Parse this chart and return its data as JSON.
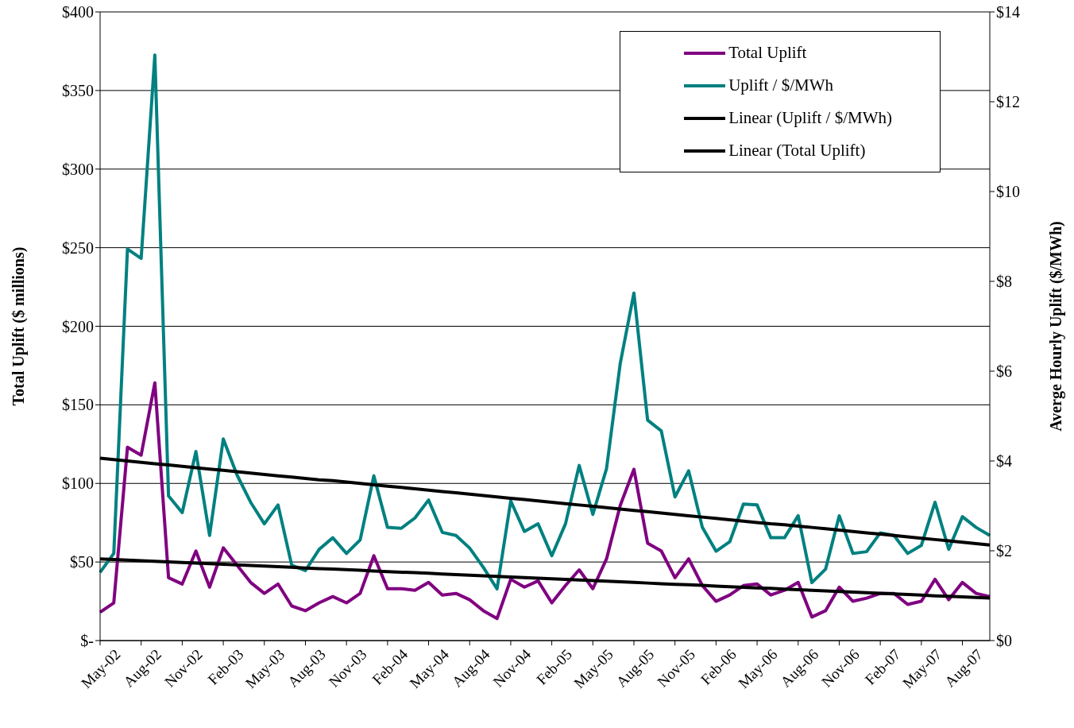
{
  "chart_data": {
    "type": "line",
    "ylabel": "Total Uplift ($ millions)",
    "y2label": "Averge Hourly Uplift ($/MWh)",
    "categories": [
      "May-02",
      null,
      null,
      "Aug-02",
      null,
      null,
      "Nov-02",
      null,
      null,
      "Feb-03",
      null,
      null,
      "May-03",
      null,
      null,
      "Aug-03",
      null,
      null,
      "Nov-03",
      null,
      null,
      "Feb-04",
      null,
      null,
      "May-04",
      null,
      null,
      "Aug-04",
      null,
      null,
      "Nov-04",
      null,
      null,
      "Feb-05",
      null,
      null,
      "May-05",
      null,
      null,
      "Aug-05",
      null,
      null,
      "Nov-05",
      null,
      null,
      "Feb-06",
      null,
      null,
      "May-06",
      null,
      null,
      "Aug-06",
      null,
      null,
      "Nov-06",
      null,
      null,
      "Feb-07",
      null,
      null,
      "May-07",
      null,
      null,
      "Aug-07",
      null,
      null
    ],
    "series": [
      {
        "name": "Total Uplift",
        "color": "#800080",
        "values": [
          18,
          24,
          123,
          118,
          164,
          40,
          36,
          57,
          34,
          59,
          48,
          37,
          30,
          36,
          22,
          19,
          24,
          28,
          24,
          30,
          54,
          33,
          33,
          32,
          37,
          29,
          30,
          26,
          19,
          14,
          39,
          34,
          38,
          24,
          35,
          45,
          33,
          52,
          86,
          109,
          62,
          57,
          40,
          52,
          35,
          25,
          29,
          35,
          36,
          29,
          32,
          37,
          15,
          19,
          34,
          25,
          27,
          30,
          30,
          23,
          25,
          39,
          26,
          37,
          30,
          28
        ]
      },
      {
        "name": "Uplift / $/MWh",
        "color": "#008080",
        "axis": "y2",
        "values": [
          1.52,
          1.94,
          8.72,
          8.51,
          13.04,
          3.22,
          2.85,
          4.21,
          2.34,
          4.49,
          3.69,
          3.08,
          2.6,
          3.02,
          1.68,
          1.56,
          2.03,
          2.29,
          1.94,
          2.24,
          3.67,
          2.52,
          2.5,
          2.73,
          3.13,
          2.41,
          2.34,
          2.06,
          1.63,
          1.15,
          3.11,
          2.43,
          2.6,
          1.89,
          2.6,
          3.9,
          2.81,
          3.83,
          6.17,
          7.74,
          4.91,
          4.67,
          3.2,
          3.78,
          2.52,
          1.99,
          2.2,
          3.04,
          3.02,
          2.29,
          2.29,
          2.78,
          1.29,
          1.59,
          2.78,
          1.94,
          1.98,
          2.4,
          2.34,
          1.94,
          2.12,
          3.08,
          2.03,
          2.76,
          2.52,
          2.34
        ]
      },
      {
        "name": "Linear (Uplift / $/MWh)",
        "color": "#000000",
        "axis": "y2",
        "values": [
          4.06,
          4.03,
          4.0,
          3.97,
          3.94,
          3.91,
          3.88,
          3.85,
          3.82,
          3.79,
          3.76,
          3.73,
          3.7,
          3.67,
          3.64,
          3.61,
          3.58,
          3.56,
          3.53,
          3.5,
          3.47,
          3.44,
          3.41,
          3.38,
          3.35,
          3.32,
          3.29,
          3.26,
          3.23,
          3.2,
          3.17,
          3.14,
          3.11,
          3.08,
          3.05,
          3.02,
          2.99,
          2.96,
          2.93,
          2.9,
          2.87,
          2.84,
          2.81,
          2.78,
          2.75,
          2.72,
          2.69,
          2.66,
          2.63,
          2.6,
          2.58,
          2.55,
          2.52,
          2.49,
          2.46,
          2.43,
          2.4,
          2.37,
          2.34,
          2.31,
          2.28,
          2.25,
          2.22,
          2.19,
          2.16,
          2.13
        ]
      },
      {
        "name": "Linear (Total Uplift)",
        "color": "#000000",
        "values": [
          52,
          51.6,
          51.2,
          50.8,
          50.5,
          50.1,
          49.7,
          49.3,
          48.9,
          48.5,
          48.2,
          47.8,
          47.4,
          47,
          46.6,
          46.2,
          45.8,
          45.5,
          45.1,
          44.7,
          44.3,
          43.9,
          43.5,
          43.2,
          42.8,
          42.4,
          42,
          41.6,
          41.2,
          40.8,
          40.5,
          40.1,
          39.7,
          39.3,
          38.9,
          38.5,
          38.2,
          37.8,
          37.4,
          37,
          36.6,
          36.2,
          35.8,
          35.5,
          35.1,
          34.7,
          34.3,
          33.9,
          33.5,
          33.2,
          32.8,
          32.4,
          32,
          31.6,
          31.2,
          30.8,
          30.5,
          30.1,
          29.7,
          29.3,
          28.9,
          28.5,
          28.2,
          27.8,
          27.4,
          27
        ]
      }
    ],
    "ylim": [
      0,
      400
    ],
    "yticks": [
      {
        "value": 0,
        "label": "$-"
      },
      {
        "value": 50,
        "label": "$50"
      },
      {
        "value": 100,
        "label": "$100"
      },
      {
        "value": 150,
        "label": "$150"
      },
      {
        "value": 200,
        "label": "$200"
      },
      {
        "value": 250,
        "label": "$250"
      },
      {
        "value": 300,
        "label": "$300"
      },
      {
        "value": 350,
        "label": "$350"
      },
      {
        "value": 400,
        "label": "$400"
      }
    ],
    "y2lim": [
      0,
      14
    ],
    "y2ticks": [
      {
        "value": 0,
        "label": "$0"
      },
      {
        "value": 2,
        "label": "$2"
      },
      {
        "value": 4,
        "label": "$4"
      },
      {
        "value": 6,
        "label": "$6"
      },
      {
        "value": 8,
        "label": "$8"
      },
      {
        "value": 10,
        "label": "$10"
      },
      {
        "value": 12,
        "label": "$12"
      },
      {
        "value": 14,
        "label": "$14"
      }
    ],
    "grid": "y",
    "legend": "top right",
    "marker": "none",
    "line_style": "solid"
  }
}
